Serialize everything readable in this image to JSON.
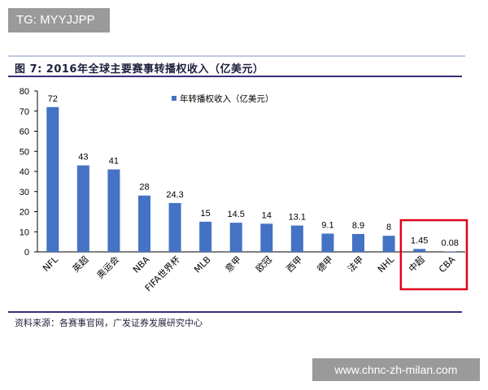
{
  "overlay": {
    "tg_label": "TG: MYYJJPP",
    "watermark_text": "www.chnc-zh-milan.com"
  },
  "figure": {
    "title": "图 7:  2016年全球主要赛事转播权收入（亿美元）",
    "source": "资料来源：各赛事官网，广发证券发展研究中心"
  },
  "colors": {
    "bar": "#4472c4",
    "highlight_box": "#e0001b",
    "rule": "#3b2d7a"
  },
  "chart_data": {
    "type": "bar",
    "title": "",
    "xlabel": "",
    "ylabel": "",
    "categories": [
      "NFL",
      "英超",
      "奥运会",
      "NBA",
      "FIFA世界杯",
      "MLB",
      "意甲",
      "欧冠",
      "西甲",
      "德甲",
      "法甲",
      "NHL",
      "中超",
      "CBA"
    ],
    "series": [
      {
        "name": "年转播权收入（亿美元）",
        "values": [
          72,
          43,
          41,
          28,
          24.3,
          15,
          14.5,
          14,
          13.1,
          9.1,
          8.9,
          8,
          1.45,
          0.08
        ]
      }
    ],
    "data_labels": [
      "72",
      "43",
      "41",
      "28",
      "24.3",
      "15",
      "14.5",
      "14",
      "13.1",
      "9.1",
      "8.9",
      "8",
      "1.45",
      "0.08"
    ],
    "ylim": [
      0,
      80
    ],
    "yticks": [
      0,
      10,
      20,
      30,
      40,
      50,
      60,
      70,
      80
    ],
    "grid": false,
    "legend": "top-right",
    "highlighted_categories": [
      "中超",
      "CBA"
    ]
  }
}
